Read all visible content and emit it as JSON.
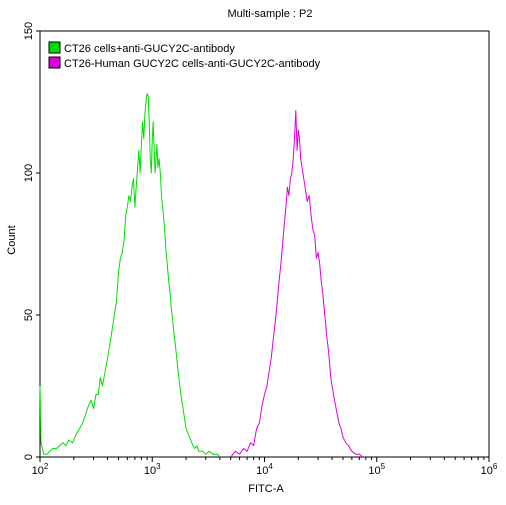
{
  "chart_data": {
    "type": "line",
    "title": "Multi-sample : P2",
    "xlabel": "FITC-A",
    "ylabel": "Count",
    "x_scale": "log10",
    "xlim": [
      100,
      1000000
    ],
    "ylim": [
      0,
      150
    ],
    "y_ticks": [
      0,
      50,
      100,
      150
    ],
    "x_ticks": [
      {
        "base": "10",
        "exp": "2",
        "value": 100
      },
      {
        "base": "10",
        "exp": "3",
        "value": 1000
      },
      {
        "base": "10",
        "exp": "4",
        "value": 10000
      },
      {
        "base": "10",
        "exp": "5",
        "value": 100000
      },
      {
        "base": "10",
        "exp": "6",
        "value": 1000000
      }
    ],
    "grid": false,
    "legend_position": "top-left",
    "series": [
      {
        "name": "CT26 cells+anti-GUCY2C-antibody",
        "color": "#00dd00",
        "points": [
          [
            100,
            25
          ],
          [
            102,
            5
          ],
          [
            108,
            1
          ],
          [
            115,
            1
          ],
          [
            122,
            2
          ],
          [
            130,
            3
          ],
          [
            140,
            3
          ],
          [
            150,
            4
          ],
          [
            160,
            5
          ],
          [
            170,
            4
          ],
          [
            180,
            6
          ],
          [
            195,
            5
          ],
          [
            210,
            8
          ],
          [
            225,
            10
          ],
          [
            240,
            12
          ],
          [
            255,
            15
          ],
          [
            270,
            18
          ],
          [
            285,
            20
          ],
          [
            300,
            17
          ],
          [
            315,
            22
          ],
          [
            330,
            22
          ],
          [
            345,
            28
          ],
          [
            360,
            25
          ],
          [
            380,
            30
          ],
          [
            400,
            35
          ],
          [
            420,
            40
          ],
          [
            440,
            45
          ],
          [
            460,
            50
          ],
          [
            480,
            55
          ],
          [
            500,
            65
          ],
          [
            520,
            70
          ],
          [
            540,
            72
          ],
          [
            560,
            76
          ],
          [
            580,
            85
          ],
          [
            600,
            88
          ],
          [
            620,
            92
          ],
          [
            640,
            90
          ],
          [
            660,
            95
          ],
          [
            680,
            98
          ],
          [
            700,
            88
          ],
          [
            720,
            95
          ],
          [
            740,
            102
          ],
          [
            760,
            108
          ],
          [
            780,
            100
          ],
          [
            800,
            110
          ],
          [
            820,
            118
          ],
          [
            840,
            112
          ],
          [
            860,
            121
          ],
          [
            880,
            125
          ],
          [
            900,
            128
          ],
          [
            920,
            127
          ],
          [
            940,
            118
          ],
          [
            960,
            105
          ],
          [
            980,
            100
          ],
          [
            1000,
            112
          ],
          [
            1020,
            118
          ],
          [
            1040,
            108
          ],
          [
            1060,
            100
          ],
          [
            1080,
            105
          ],
          [
            1100,
            110
          ],
          [
            1120,
            102
          ],
          [
            1150,
            105
          ],
          [
            1180,
            100
          ],
          [
            1210,
            92
          ],
          [
            1240,
            88
          ],
          [
            1270,
            83
          ],
          [
            1300,
            78
          ],
          [
            1330,
            72
          ],
          [
            1360,
            68
          ],
          [
            1400,
            62
          ],
          [
            1440,
            58
          ],
          [
            1480,
            52
          ],
          [
            1520,
            48
          ],
          [
            1560,
            44
          ],
          [
            1600,
            40
          ],
          [
            1650,
            35
          ],
          [
            1700,
            30
          ],
          [
            1750,
            26
          ],
          [
            1800,
            22
          ],
          [
            1850,
            19
          ],
          [
            1900,
            16
          ],
          [
            1950,
            13
          ],
          [
            2000,
            10
          ],
          [
            2100,
            8
          ],
          [
            2200,
            6
          ],
          [
            2300,
            4
          ],
          [
            2400,
            3
          ],
          [
            2500,
            4
          ],
          [
            2600,
            2
          ],
          [
            2800,
            2
          ],
          [
            3000,
            1
          ],
          [
            3200,
            2
          ],
          [
            3500,
            1
          ],
          [
            3800,
            1
          ],
          [
            4000,
            0
          ]
        ]
      },
      {
        "name": "CT26-Human GUCY2C cells-anti-GUCY2C-antibody",
        "color": "#dd00dd",
        "points": [
          [
            5000,
            0
          ],
          [
            5500,
            2
          ],
          [
            6000,
            1
          ],
          [
            6500,
            3
          ],
          [
            7000,
            2
          ],
          [
            7500,
            5
          ],
          [
            8000,
            4
          ],
          [
            8500,
            10
          ],
          [
            9000,
            12
          ],
          [
            9500,
            18
          ],
          [
            10000,
            22
          ],
          [
            10500,
            25
          ],
          [
            11000,
            30
          ],
          [
            11500,
            35
          ],
          [
            12000,
            42
          ],
          [
            12500,
            48
          ],
          [
            13000,
            55
          ],
          [
            13500,
            62
          ],
          [
            14000,
            68
          ],
          [
            14500,
            75
          ],
          [
            15000,
            82
          ],
          [
            15500,
            88
          ],
          [
            16000,
            95
          ],
          [
            16500,
            92
          ],
          [
            17000,
            98
          ],
          [
            17500,
            100
          ],
          [
            18000,
            105
          ],
          [
            18500,
            112
          ],
          [
            19000,
            122
          ],
          [
            19500,
            108
          ],
          [
            20000,
            115
          ],
          [
            20500,
            112
          ],
          [
            21000,
            105
          ],
          [
            22000,
            100
          ],
          [
            23000,
            95
          ],
          [
            24000,
            90
          ],
          [
            25000,
            92
          ],
          [
            26000,
            85
          ],
          [
            27000,
            80
          ],
          [
            28000,
            78
          ],
          [
            29000,
            70
          ],
          [
            30000,
            72
          ],
          [
            31000,
            68
          ],
          [
            32000,
            62
          ],
          [
            33000,
            58
          ],
          [
            34000,
            52
          ],
          [
            35000,
            47
          ],
          [
            36000,
            42
          ],
          [
            37000,
            38
          ],
          [
            38000,
            33
          ],
          [
            39000,
            28
          ],
          [
            40000,
            25
          ],
          [
            42000,
            20
          ],
          [
            44000,
            16
          ],
          [
            46000,
            12
          ],
          [
            48000,
            10
          ],
          [
            50000,
            7
          ],
          [
            53000,
            5
          ],
          [
            56000,
            4
          ],
          [
            60000,
            2
          ],
          [
            65000,
            1
          ],
          [
            70000,
            1
          ],
          [
            75000,
            0
          ]
        ]
      }
    ]
  }
}
